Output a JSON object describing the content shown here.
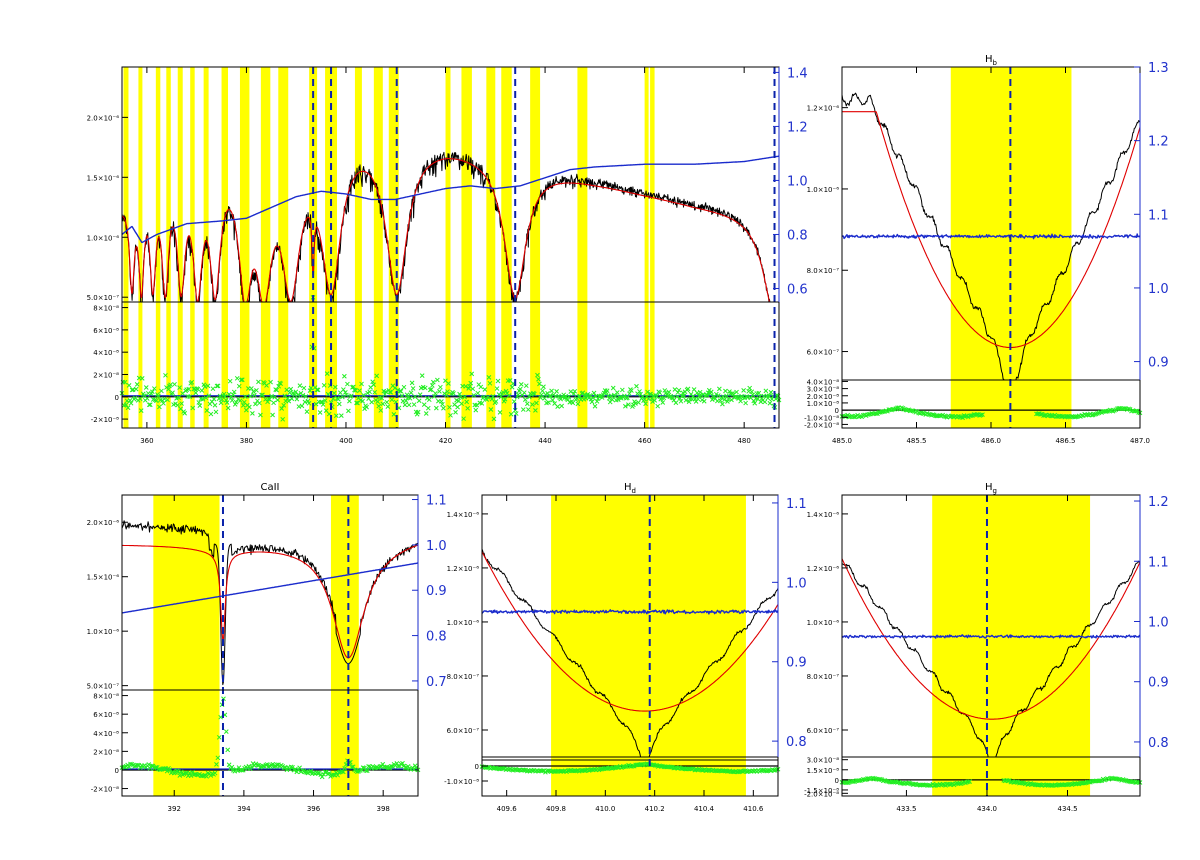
{
  "colors": {
    "data": "#000000",
    "model": "#e00000",
    "ratio": "#1a2bcc",
    "residual": "#22ee22",
    "mask": "#ffff00",
    "line_marker": "#0a22aa"
  },
  "chart_data": [
    {
      "id": "full",
      "type": "line",
      "title": "",
      "x_ticks": [
        "360",
        "380",
        "400",
        "420",
        "440",
        "460",
        "480"
      ],
      "x_tick_values": [
        360,
        380,
        400,
        420,
        440,
        460,
        480
      ],
      "xlim": [
        355,
        487
      ],
      "left_ticks": [
        "2.0×10⁻⁶",
        "1.5×10⁻⁶",
        "1.0×10⁻⁶",
        "5.0×10⁻⁷"
      ],
      "left_tick_values": [
        2e-06,
        1.5e-06,
        1e-06,
        5e-07
      ],
      "ylim_top": [
        4.6e-07,
        2.42e-06
      ],
      "right_ticks": [
        "1.4",
        "1.2",
        "1.0",
        "0.8",
        "0.6"
      ],
      "right_tick_values": [
        1.4,
        1.2,
        1.0,
        0.8,
        0.6
      ],
      "ylim_right": [
        0.55,
        1.42
      ],
      "resid_ticks": [
        "8×10⁻⁸",
        "6×10⁻⁸",
        "4×10⁻⁸",
        "2×10⁻⁸",
        "0",
        "-2×10⁻⁸"
      ],
      "resid_tick_values": [
        8e-08,
        6e-08,
        4e-08,
        2e-08,
        0,
        -2e-08
      ],
      "ylim_resid": [
        -2.8e-08,
        8.5e-08
      ],
      "mask_bands": [
        [
          355.3,
          356.3
        ],
        [
          358.3,
          359.1
        ],
        [
          361.8,
          362.7
        ],
        [
          363.9,
          364.8
        ],
        [
          366.2,
          367.2
        ],
        [
          368.7,
          369.6
        ],
        [
          371.4,
          372.4
        ],
        [
          375.0,
          376.3
        ],
        [
          378.7,
          380.6
        ],
        [
          382.9,
          384.8
        ],
        [
          386.4,
          388.4
        ],
        [
          392.6,
          394.2
        ],
        [
          395.8,
          398.2
        ],
        [
          401.8,
          403.2
        ],
        [
          405.6,
          407.4
        ],
        [
          408.6,
          410.6
        ],
        [
          420.0,
          421.0
        ],
        [
          423.2,
          425.3
        ],
        [
          428.2,
          430.0
        ],
        [
          431.2,
          433.3
        ],
        [
          437.0,
          439.0
        ],
        [
          446.5,
          448.5
        ],
        [
          460.0,
          460.8
        ],
        [
          461.1,
          462.0
        ]
      ],
      "line_markers": [
        393.4,
        397.0,
        410.2,
        434.0,
        486.1
      ],
      "continuum_points": [
        [
          355,
          1.31e-06
        ],
        [
          360,
          1.62e-06
        ],
        [
          365,
          1.73e-06
        ],
        [
          370,
          1.78e-06
        ],
        [
          375,
          1.82e-06
        ],
        [
          380,
          1.83e-06
        ],
        [
          385,
          1.85e-06
        ],
        [
          390,
          1.86e-06
        ],
        [
          395,
          1.9e-06
        ],
        [
          400,
          1.95e-06
        ],
        [
          405,
          1.9e-06
        ],
        [
          410,
          1.82e-06
        ],
        [
          415,
          1.82e-06
        ],
        [
          420,
          1.8e-06
        ],
        [
          430,
          1.72e-06
        ],
        [
          440,
          1.58e-06
        ],
        [
          450,
          1.47e-06
        ],
        [
          460,
          1.37e-06
        ],
        [
          470,
          1.28e-06
        ],
        [
          480,
          1.22e-06
        ],
        [
          487,
          1.18e-06
        ]
      ],
      "absorption_lines": [
        [
          357.0,
          1.2,
          0.58
        ],
        [
          358.9,
          1.3,
          0.62
        ],
        [
          361.2,
          1.5,
          0.62
        ],
        [
          363.7,
          1.7,
          0.65
        ],
        [
          366.9,
          2.0,
          0.65
        ],
        [
          370.2,
          2.3,
          0.68
        ],
        [
          373.7,
          2.6,
          0.68
        ],
        [
          379.8,
          3.2,
          0.7
        ],
        [
          383.5,
          3.8,
          0.7
        ],
        [
          388.9,
          4.4,
          0.7
        ],
        [
          393.4,
          0.5,
          0.45
        ],
        [
          397.0,
          4.8,
          0.7
        ],
        [
          410.2,
          5.0,
          0.7
        ],
        [
          434.0,
          5.2,
          0.7
        ],
        [
          486.1,
          5.4,
          0.7
        ]
      ],
      "ratio_points": [
        [
          355,
          0.8
        ],
        [
          357,
          0.83
        ],
        [
          359,
          0.77
        ],
        [
          362,
          0.8
        ],
        [
          368,
          0.84
        ],
        [
          375,
          0.85
        ],
        [
          380,
          0.86
        ],
        [
          385,
          0.9
        ],
        [
          390,
          0.94
        ],
        [
          395,
          0.96
        ],
        [
          400,
          0.95
        ],
        [
          405,
          0.93
        ],
        [
          410,
          0.93
        ],
        [
          415,
          0.95
        ],
        [
          420,
          0.97
        ],
        [
          425,
          0.98
        ],
        [
          430,
          0.97
        ],
        [
          435,
          0.98
        ],
        [
          440,
          1.01
        ],
        [
          445,
          1.04
        ],
        [
          450,
          1.05
        ],
        [
          460,
          1.06
        ],
        [
          470,
          1.06
        ],
        [
          480,
          1.07
        ],
        [
          487,
          1.09
        ]
      ],
      "residual_sigma": 1e-08,
      "residual_features": [
        [
          393.4,
          0.3,
          8e-08
        ],
        [
          434.0,
          0.3,
          -1e-08
        ],
        [
          486.1,
          0.3,
          -1e-08
        ]
      ]
    },
    {
      "id": "hb",
      "type": "line",
      "title": "Hb",
      "title_sub": "b",
      "title_main": "H",
      "x_ticks": [
        "485.0",
        "485.5",
        "486.0",
        "486.5",
        "487.0"
      ],
      "x_tick_values": [
        485.0,
        485.5,
        486.0,
        486.5,
        487.0
      ],
      "xlim": [
        485.0,
        487.0
      ],
      "left_ticks": [
        "1.2×10⁻⁶",
        "1.0×10⁻⁶",
        "8.0×10⁻⁷",
        "6.0×10⁻⁷"
      ],
      "left_tick_values": [
        1.2e-06,
        1e-06,
        8e-07,
        6e-07
      ],
      "ylim_top": [
        5.3e-07,
        1.3e-06
      ],
      "right_ticks": [
        "1.3",
        "1.2",
        "1.1",
        "1.0",
        "0.9"
      ],
      "right_tick_values": [
        1.3,
        1.2,
        1.1,
        1.0,
        0.9
      ],
      "ylim_right": [
        0.875,
        1.3
      ],
      "resid_ticks": [
        "4.0×10⁻⁸",
        "3.0×10⁻⁸",
        "2.0×10⁻⁸",
        "1.0×10⁻⁸",
        "0",
        "-1.0×10⁻⁸",
        "-2.0×10⁻⁸"
      ],
      "resid_tick_values": [
        4e-08,
        3e-08,
        2e-08,
        1e-08,
        0,
        -1e-08,
        -2e-08
      ],
      "ylim_resid": [
        -2.5e-08,
        4.2e-08
      ],
      "mask_bands": [
        [
          485.73,
          486.54
        ]
      ],
      "line_markers": [
        486.13
      ],
      "model_center": 486.13,
      "model_depth": 0.62,
      "model_min": 6.1e-07,
      "model_edge": 1.19e-06,
      "model_halfwidth": 0.9,
      "data_edge": 1.22e-06,
      "data_min": 5.45e-07,
      "ratio_level": 1.07,
      "residual_gap": [
        485.95,
        486.3
      ]
    },
    {
      "id": "caii",
      "type": "line",
      "title": "CaII",
      "x_ticks": [
        "392",
        "394",
        "396",
        "398"
      ],
      "x_tick_values": [
        392,
        394,
        396,
        398
      ],
      "xlim": [
        390.5,
        399.0
      ],
      "left_ticks": [
        "2.0×10⁻⁶",
        "1.5×10⁻⁶",
        "1.0×10⁻⁶",
        "5.0×10⁻⁷"
      ],
      "left_tick_values": [
        2e-06,
        1.5e-06,
        1e-06,
        5e-07
      ],
      "ylim_top": [
        4.6e-07,
        2.25e-06
      ],
      "right_ticks": [
        "1.1",
        "1.0",
        "0.9",
        "0.8",
        "0.7"
      ],
      "right_tick_values": [
        1.1,
        1.0,
        0.9,
        0.8,
        0.7
      ],
      "ylim_right": [
        0.68,
        1.11
      ],
      "resid_ticks": [
        "8×10⁻⁸",
        "6×10⁻⁸",
        "4×10⁻⁸",
        "2×10⁻⁸",
        "0",
        "-2×10⁻⁸"
      ],
      "resid_tick_values": [
        8e-08,
        6e-08,
        4e-08,
        2e-08,
        0,
        -2e-08
      ],
      "ylim_resid": [
        -2.8e-08,
        8.6e-08
      ],
      "mask_bands": [
        [
          391.4,
          393.3
        ],
        [
          396.5,
          397.3
        ]
      ],
      "line_markers": [
        393.4,
        397.0
      ],
      "ratio_range": [
        0.85,
        0.96
      ]
    },
    {
      "id": "hd",
      "type": "line",
      "title": "Hd",
      "title_main": "H",
      "title_sub": "d",
      "x_ticks": [
        "409.6",
        "409.8",
        "410.0",
        "410.2",
        "410.4",
        "410.6"
      ],
      "x_tick_values": [
        409.6,
        409.8,
        410.0,
        410.2,
        410.4,
        410.6
      ],
      "xlim": [
        409.5,
        410.7
      ],
      "left_ticks": [
        "1.4×10⁻⁶",
        "1.2×10⁻⁶",
        "1.0×10⁻⁶",
        "8.0×10⁻⁷",
        "6.0×10⁻⁷"
      ],
      "left_tick_values": [
        1.4e-06,
        1.2e-06,
        1e-06,
        8e-07,
        6e-07
      ],
      "ylim_top": [
        5e-07,
        1.47e-06
      ],
      "right_ticks": [
        "1.1",
        "1.0",
        "0.9",
        "0.8"
      ],
      "right_tick_values": [
        1.1,
        1.0,
        0.9,
        0.8
      ],
      "ylim_right": [
        0.78,
        1.11
      ],
      "resid_ticks": [
        "0",
        "-1.0×10⁻⁸"
      ],
      "resid_tick_values": [
        0,
        -1e-08
      ],
      "ylim_resid": [
        -2e-08,
        6e-09
      ],
      "mask_bands": [
        [
          409.78,
          410.57
        ]
      ],
      "line_markers": [
        410.18
      ],
      "model_center": 410.16,
      "model_min": 6.7e-07,
      "model_edge": 1.26e-06,
      "model_halfwidth": 0.66,
      "data_edge": 1.3e-06,
      "data_min": 5.35e-07,
      "ratio_level": 0.963,
      "residual_gap": null
    },
    {
      "id": "hg",
      "type": "line",
      "title": "Hg",
      "title_main": "H",
      "title_sub": "g",
      "x_ticks": [
        "433.5",
        "434.0",
        "434.5"
      ],
      "x_tick_values": [
        433.5,
        434.0,
        434.5
      ],
      "xlim": [
        433.1,
        434.95
      ],
      "left_ticks": [
        "1.4×10⁻⁶",
        "1.2×10⁻⁶",
        "1.0×10⁻⁶",
        "8.0×10⁻⁷",
        "6.0×10⁻⁷"
      ],
      "left_tick_values": [
        1.4e-06,
        1.2e-06,
        1e-06,
        8e-07,
        6e-07
      ],
      "ylim_top": [
        5e-07,
        1.47e-06
      ],
      "right_ticks": [
        "1.2",
        "1.1",
        "1.0",
        "0.9",
        "0.8"
      ],
      "right_tick_values": [
        1.2,
        1.1,
        1.0,
        0.9,
        0.8
      ],
      "ylim_right": [
        0.775,
        1.21
      ],
      "resid_ticks": [
        "3.0×10⁻⁸",
        "1.5×10⁻⁸",
        "0",
        "-1.5×10⁻⁸",
        "-2.0×10⁻⁸"
      ],
      "resid_tick_values": [
        3e-08,
        1.5e-08,
        0,
        -1.5e-08,
        -2e-08
      ],
      "ylim_resid": [
        -2.4e-08,
        3.4e-08
      ],
      "mask_bands": [
        [
          433.66,
          434.64
        ]
      ],
      "line_markers": [
        434.0
      ],
      "model_center": 434.03,
      "model_min": 6.4e-07,
      "model_edge": 1.26e-06,
      "model_halfwidth": 0.95,
      "data_edge": 1.28e-06,
      "data_min": 5.3e-07,
      "ratio_level": 0.975,
      "residual_gap": [
        433.9,
        434.1
      ]
    }
  ]
}
